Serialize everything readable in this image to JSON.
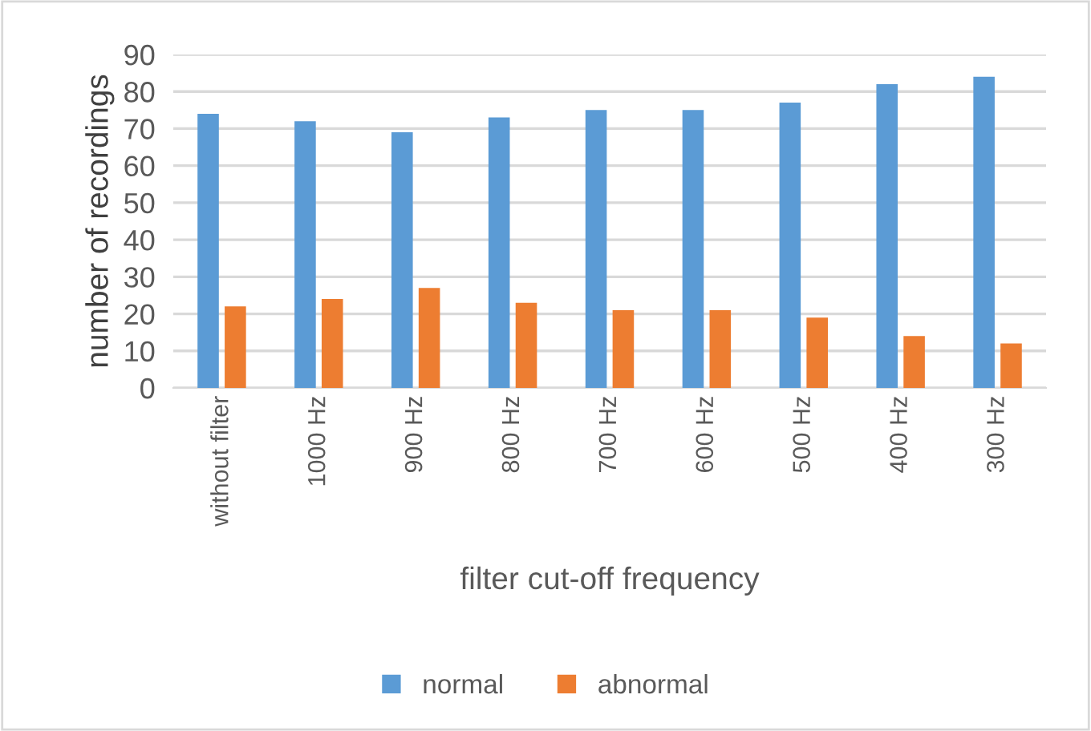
{
  "chart_data": {
    "type": "bar",
    "xlabel": "filter cut-off frequency",
    "ylabel": "number of recordings",
    "categories": [
      "without filter",
      "1000 Hz",
      "900 Hz",
      "800 Hz",
      "700 Hz",
      "600 Hz",
      "500 Hz",
      "400 Hz",
      "300 Hz"
    ],
    "series": [
      {
        "name": "normal",
        "color": "#5b9bd5",
        "values": [
          74,
          72,
          69,
          73,
          75,
          75,
          77,
          82,
          84
        ]
      },
      {
        "name": "abnormal",
        "color": "#ed7d31",
        "values": [
          22,
          24,
          27,
          23,
          21,
          21,
          19,
          14,
          12
        ]
      }
    ],
    "ylim": [
      0,
      90
    ],
    "yticks": [
      0,
      10,
      20,
      30,
      40,
      50,
      60,
      70,
      80,
      90
    ],
    "grid": "y",
    "legend": "bottom"
  }
}
